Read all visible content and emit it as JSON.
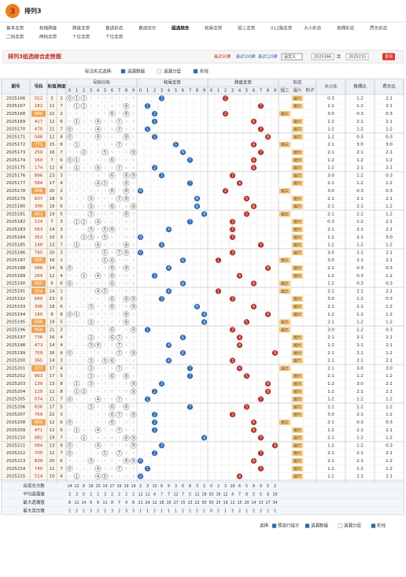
{
  "header": {
    "logo": "3",
    "title": "排列3"
  },
  "nav": [
    "基本走势",
    "和值跨度",
    "跨度走势",
    "直选形态",
    "直选综合",
    "组选综合",
    "和尾走势",
    "组三走势",
    "012路走势",
    "大小形态",
    "奇偶形态",
    "质合形态",
    "二码走势",
    "两码走势",
    "十位走势",
    "个位走势"
  ],
  "nav_active": 5,
  "toolbar": {
    "title": "排列3组选综合走势图",
    "recent": [
      "最近50期",
      "最近100期",
      "最近120期"
    ],
    "select": "自定义",
    "from": "2025166",
    "to_label": "至",
    "to": "2025215",
    "query": "查询"
  },
  "options": {
    "label": "标注形式选择:",
    "items": [
      "遗漏数据",
      "遗漏分层",
      "折线"
    ]
  },
  "table": {
    "headers": [
      "期号",
      "号码",
      "和值",
      "跨度"
    ],
    "groups": [
      "号码分布",
      "和尾走势",
      "跨度走势",
      "形态",
      "大小比",
      "奇偶比",
      "质合比"
    ],
    "digits": [
      0,
      1,
      2,
      3,
      4,
      5,
      6,
      7,
      8,
      9
    ],
    "shapes": [
      "组三",
      "组六",
      "豹子"
    ],
    "rows": [
      [
        "2025166",
        "012",
        3,
        2,
        "组六",
        "0:3",
        "1:2",
        "2:1"
      ],
      [
        "2025167",
        "182",
        11,
        7,
        "组六",
        "1:2",
        "1:2",
        "2:1"
      ],
      [
        "2025168",
        "886",
        22,
        2,
        "组三",
        "3:0",
        "0:3",
        "0:3"
      ],
      [
        "2025169",
        "417",
        12,
        6,
        "组六",
        "1:2",
        "2:1",
        "2:1"
      ],
      [
        "2025170",
        "470",
        11,
        7,
        "组六",
        "1:2",
        "1:2",
        "1:2"
      ],
      [
        "2025171",
        "048",
        12,
        8,
        "组六",
        "1:2",
        "0:3",
        "0:3"
      ],
      [
        "2025172",
        "771",
        15,
        6,
        "组三",
        "2:1",
        "3:0",
        "3:0"
      ],
      [
        "2025173",
        "259",
        16,
        7,
        "组六",
        "2:1",
        "2:1",
        "2:1"
      ],
      [
        "2025174",
        "160",
        7,
        6,
        "组六",
        "1:2",
        "1:2",
        "1:2"
      ],
      [
        "2025175",
        "174",
        12,
        6,
        "组六",
        "1:2",
        "2:1",
        "2:1"
      ],
      [
        "2025176",
        "896",
        23,
        3,
        "组六",
        "3:0",
        "1:2",
        "0:3"
      ],
      [
        "2025177",
        "584",
        17,
        4,
        "组六",
        "2:1",
        "1:2",
        "1:2"
      ],
      [
        "2025178",
        "686",
        20,
        2,
        "组三",
        "3:0",
        "0:3",
        "0:3"
      ],
      [
        "2025179",
        "837",
        18,
        5,
        "组六",
        "2:1",
        "2:1",
        "2:1"
      ],
      [
        "2025180",
        "396",
        18,
        6,
        "组六",
        "2:1",
        "2:1",
        "1:2"
      ],
      [
        "2025181",
        "883",
        19,
        5,
        "组三",
        "2:1",
        "1:2",
        "1:2"
      ],
      [
        "2025182",
        "124",
        7,
        3,
        "组六",
        "0:3",
        "1:2",
        "2:1"
      ],
      [
        "2025183",
        "563",
        14,
        3,
        "组六",
        "2:1",
        "2:1",
        "2:1"
      ],
      [
        "2025184",
        "352",
        10,
        3,
        "组六",
        "1:2",
        "2:1",
        "3:0"
      ],
      [
        "2025185",
        "148",
        13,
        7,
        "组六",
        "1:2",
        "1:2",
        "1:2"
      ],
      [
        "2025186",
        "785",
        20,
        3,
        "组六",
        "3:0",
        "2:1",
        "2:1"
      ],
      [
        "2025187",
        "565",
        16,
        1,
        "组三",
        "3:0",
        "2:1",
        "2:1"
      ],
      [
        "2025188",
        "086",
        14,
        8,
        "组六",
        "2:1",
        "0:3",
        "0:3"
      ],
      [
        "2025189",
        "264",
        12,
        4,
        "组六",
        "1:2",
        "0:3",
        "1:2"
      ],
      [
        "2025190",
        "060",
        6,
        6,
        "组三",
        "1:2",
        "0:3",
        "0:3"
      ],
      [
        "2025191",
        "554",
        14,
        1,
        "组三",
        "2:1",
        "2:1",
        "2:1"
      ],
      [
        "2025192",
        "689",
        23,
        3,
        "组六",
        "3:0",
        "1:2",
        "0:3"
      ],
      [
        "2025193",
        "396",
        18,
        6,
        "组六",
        "2:1",
        "2:1",
        "1:2"
      ],
      [
        "2025194",
        "180",
        9,
        8,
        "组六",
        "1:2",
        "1:2",
        "1:2"
      ],
      [
        "2025195",
        "838",
        19,
        5,
        "组三",
        "2:1",
        "1:2",
        "1:2"
      ],
      [
        "2025196",
        "966",
        21,
        3,
        "组三",
        "3:0",
        "1:2",
        "0:3"
      ],
      [
        "2025197",
        "736",
        16,
        4,
        "组六",
        "2:1",
        "2:1",
        "2:1"
      ],
      [
        "2025198",
        "473",
        14,
        4,
        "组六",
        "1:2",
        "2:1",
        "2:1"
      ],
      [
        "2025199",
        "709",
        16,
        9,
        "组六",
        "2:1",
        "2:1",
        "1:2"
      ],
      [
        "2025200",
        "365",
        14,
        3,
        "组六",
        "2:1",
        "2:1",
        "2:1"
      ],
      [
        "2025201",
        "377",
        17,
        4,
        "组三",
        "2:1",
        "3:0",
        "3:0"
      ],
      [
        "2025202",
        "863",
        17,
        5,
        "组六",
        "2:1",
        "1:2",
        "1:2"
      ],
      [
        "2025203",
        "139",
        13,
        8,
        "组六",
        "1:2",
        "3:0",
        "2:1"
      ],
      [
        "2025204",
        "129",
        12,
        8,
        "组六",
        "1:2",
        "2:1",
        "2:1"
      ],
      [
        "2025205",
        "074",
        11,
        7,
        "组六",
        "1:2",
        "1:2",
        "1:2"
      ],
      [
        "2025206",
        "836",
        17,
        5,
        "组六",
        "2:1",
        "1:2",
        "1:2"
      ],
      [
        "2025207",
        "769",
        22,
        3,
        "组六",
        "3:0",
        "2:1",
        "1:2"
      ],
      [
        "2025208",
        "660",
        12,
        6,
        "组三",
        "2:1",
        "0:3",
        "0:3"
      ],
      [
        "2025209",
        "471",
        12,
        6,
        "组六",
        "1:2",
        "2:1",
        "2:1"
      ],
      [
        "2025210",
        "982",
        19,
        7,
        "组六",
        "2:1",
        "1:2",
        "1:2"
      ],
      [
        "2025211",
        "094",
        13,
        9,
        "组六",
        "1:2",
        "1:2",
        "0:3"
      ],
      [
        "2025212",
        "705",
        12,
        7,
        "组六",
        "2:1",
        "2:1",
        "2:1"
      ],
      [
        "2025213",
        "839",
        20,
        6,
        "组六",
        "2:1",
        "2:1",
        "1:2"
      ],
      [
        "2025214",
        "740",
        11,
        7,
        "组六",
        "1:2",
        "1:2",
        "1:2"
      ],
      [
        "2025215",
        "514",
        10,
        4,
        "组六",
        "1:2",
        "2:1",
        "2:1"
      ]
    ],
    "stats": [
      {
        "label": "出现总次数",
        "values": [
          14,
          12,
          8,
          16,
          15,
          14,
          17,
          16,
          19,
          19,
          3,
          3,
          10,
          6,
          6,
          3,
          6,
          8,
          3,
          2,
          0,
          2,
          3,
          10,
          6,
          5,
          8,
          9,
          5,
          2
        ]
      },
      {
        "label": "平均遗漏值",
        "values": [
          3,
          3,
          5,
          2,
          2,
          3,
          2,
          2,
          2,
          2,
          12,
          12,
          4,
          7,
          7,
          12,
          7,
          5,
          12,
          16,
          50,
          16,
          12,
          4,
          7,
          8,
          5,
          5,
          8,
          16
        ]
      },
      {
        "label": "最大遗漏值",
        "values": [
          8,
          11,
          14,
          9,
          9,
          11,
          8,
          7,
          9,
          8,
          21,
          24,
          12,
          18,
          16,
          27,
          15,
          13,
          22,
          30,
          50,
          25,
          19,
          12,
          15,
          20,
          14,
          13,
          17,
          34
        ]
      },
      {
        "label": "最大连出值",
        "values": [
          2,
          2,
          1,
          3,
          2,
          2,
          3,
          2,
          3,
          3,
          1,
          1,
          2,
          1,
          1,
          1,
          2,
          2,
          1,
          1,
          0,
          1,
          1,
          3,
          2,
          1,
          2,
          2,
          1,
          1
        ]
      }
    ]
  },
  "footer": {
    "label": "选择:",
    "items": [
      "预选行提示",
      "遗漏数据",
      "遗漏分层",
      "折线"
    ]
  }
}
